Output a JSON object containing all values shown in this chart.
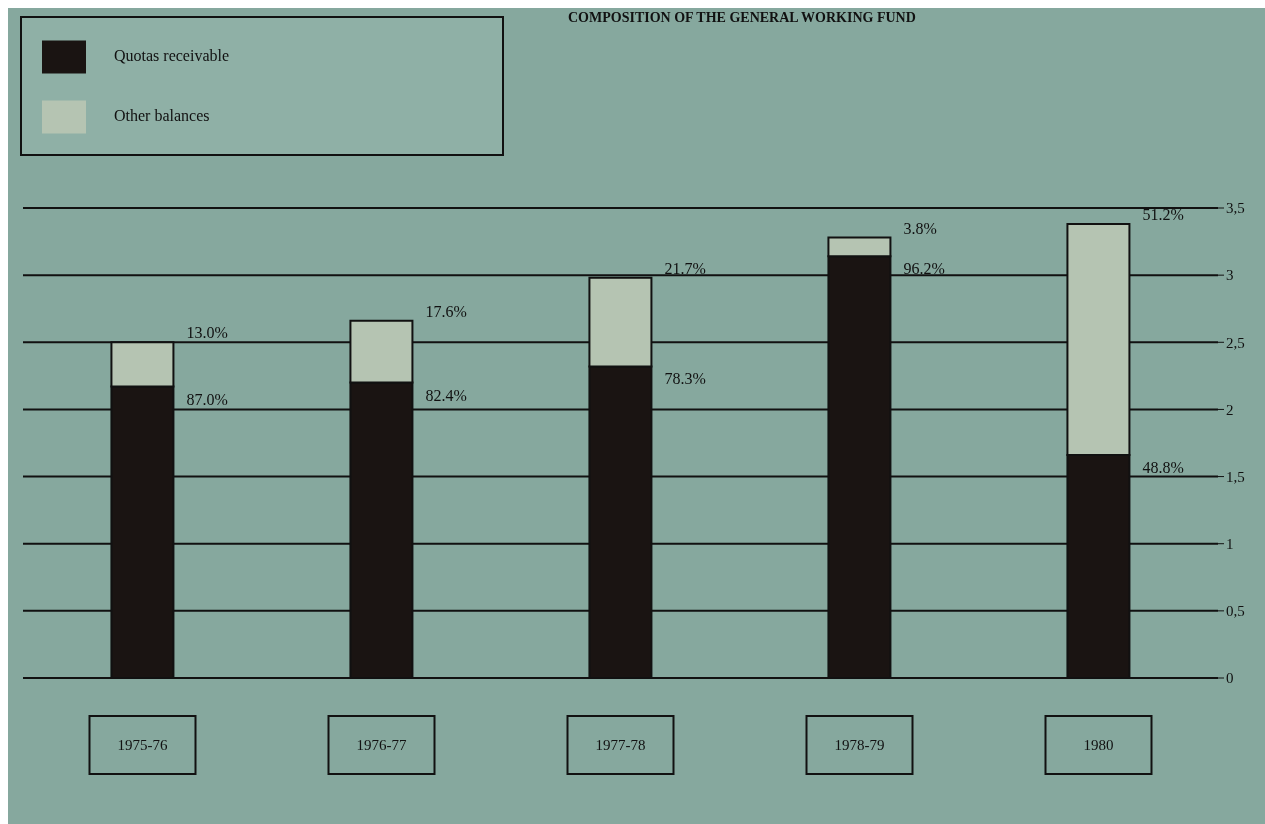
{
  "chart_data": {
    "type": "bar",
    "title": "COMPOSITION OF THE GENERAL WORKING FUND",
    "categories": [
      "1975-76",
      "1976-77",
      "1977-78",
      "1978-79",
      "1980"
    ],
    "stacked": true,
    "series": [
      {
        "name": "Quotas receivable",
        "color": "#1a1412",
        "values": [
          2.17,
          2.2,
          2.32,
          3.14,
          1.66
        ]
      },
      {
        "name": "Other balances",
        "color": "#b5c4b2",
        "values": [
          0.33,
          0.46,
          0.66,
          0.14,
          1.72
        ]
      }
    ],
    "annotations": [
      {
        "text": "87.0%",
        "x": "1975-76",
        "y": 2.17
      },
      {
        "text": "13.0%",
        "x": "1975-76",
        "y": 2.5
      },
      {
        "text": "82.4%",
        "x": "1976-77",
        "y": 2.2
      },
      {
        "text": "17.6%",
        "x": "1976-77",
        "y": 2.66
      },
      {
        "text": "78.3%",
        "x": "1977-78",
        "y": 2.32
      },
      {
        "text": "21.7%",
        "x": "1977-78",
        "y": 2.98
      },
      {
        "text": "96.2%",
        "x": "1978-79",
        "y": 3.14
      },
      {
        "text": "3.8%",
        "x": "1978-79",
        "y": 3.28
      },
      {
        "text": "48.8%",
        "x": "1980",
        "y": 1.66
      },
      {
        "text": "51.2%",
        "x": "1980",
        "y": 3.38
      }
    ],
    "ylim": [
      0,
      3.5
    ],
    "yticks": [
      0,
      {
        "value": 0.5,
        "label": "0,5"
      },
      1,
      {
        "value": 1.5,
        "label": "1,5"
      },
      2,
      {
        "value": 2.5,
        "label": "2,5"
      },
      3,
      {
        "value": 3.5,
        "label": "3,5"
      }
    ],
    "grid": "y",
    "legend": "top left"
  }
}
